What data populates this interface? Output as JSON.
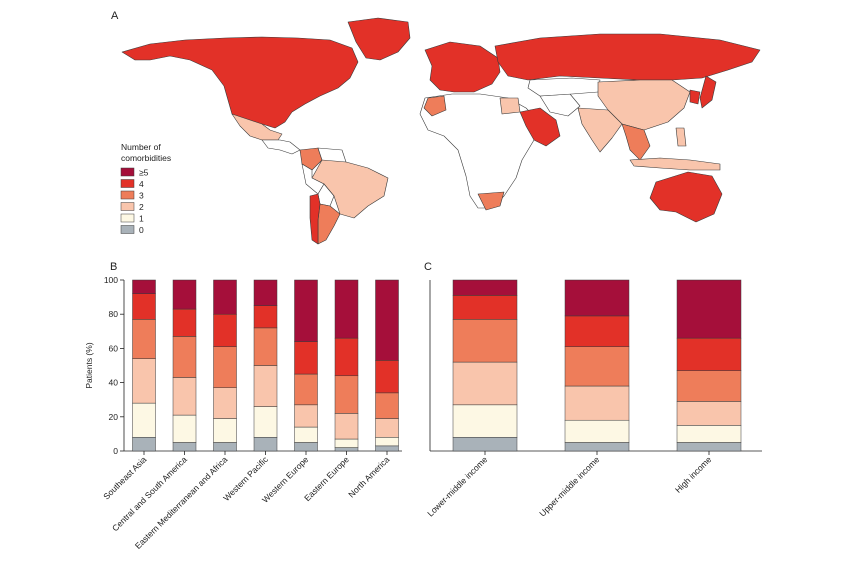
{
  "panels": {
    "a": "A",
    "b": "B",
    "c": "C"
  },
  "colors": {
    "c5": "#a50f3a",
    "c4": "#e23128",
    "c3": "#ee7d5a",
    "c2": "#f9c5ac",
    "c1": "#fdf8e4",
    "c0": "#a9b2b9",
    "none": "#ffffff",
    "border": "#3a3a3a"
  },
  "map": {
    "legend": {
      "title_line1": "Number of",
      "title_line2": "comorbidities",
      "items": [
        {
          "label": "≥5",
          "color": "#a50f3a"
        },
        {
          "label": "4",
          "color": "#e23128"
        },
        {
          "label": "3",
          "color": "#ee7d5a"
        },
        {
          "label": "2",
          "color": "#f9c5ac"
        },
        {
          "label": "1",
          "color": "#fdf8e4"
        },
        {
          "label": "0",
          "color": "#a9b2b9"
        }
      ]
    },
    "regions": [
      {
        "name": "North America",
        "color": "#e23128"
      },
      {
        "name": "Greenland",
        "color": "#e23128"
      },
      {
        "name": "Mexico",
        "color": "#f9c5ac"
      },
      {
        "name": "Central America",
        "color": "#ffffff"
      },
      {
        "name": "Colombia",
        "color": "#ee7d5a"
      },
      {
        "name": "Venezuela",
        "color": "#ffffff"
      },
      {
        "name": "Brazil",
        "color": "#f9c5ac"
      },
      {
        "name": "Peru",
        "color": "#ffffff"
      },
      {
        "name": "Bolivia",
        "color": "#ffffff"
      },
      {
        "name": "Chile",
        "color": "#e23128"
      },
      {
        "name": "Argentina",
        "color": "#ee7d5a"
      },
      {
        "name": "Europe",
        "color": "#e23128"
      },
      {
        "name": "Russia",
        "color": "#e23128"
      },
      {
        "name": "Africa",
        "color": "#ffffff"
      },
      {
        "name": "Morocco",
        "color": "#ee7d5a"
      },
      {
        "name": "Egypt",
        "color": "#f9c5ac"
      },
      {
        "name": "South Africa",
        "color": "#ee7d5a"
      },
      {
        "name": "Arabian Peninsula",
        "color": "#e23128"
      },
      {
        "name": "Iran",
        "color": "#ffffff"
      },
      {
        "name": "Kazakhstan",
        "color": "#ffffff"
      },
      {
        "name": "China",
        "color": "#f9c5ac"
      },
      {
        "name": "India",
        "color": "#f9c5ac"
      },
      {
        "name": "Japan",
        "color": "#e23128"
      },
      {
        "name": "Korea",
        "color": "#e23128"
      },
      {
        "name": "Southeast Asia",
        "color": "#ee7d5a"
      },
      {
        "name": "Philippines",
        "color": "#f9c5ac"
      },
      {
        "name": "Indonesia",
        "color": "#f9c5ac"
      },
      {
        "name": "Australia",
        "color": "#e23128"
      }
    ]
  },
  "chart_data": [
    {
      "type": "bar",
      "stacked": true,
      "panel": "B",
      "ylabel": "Patients (%)",
      "ylim": [
        0,
        100
      ],
      "yticks": [
        0,
        20,
        40,
        60,
        80,
        100
      ],
      "categories": [
        "Southeast Asia",
        "Central and South America",
        "Eastern Mediterranean and Africa",
        "Western Pacific",
        "Western Europe",
        "Eastern Europe",
        "North America"
      ],
      "series": [
        {
          "name": "0",
          "values": [
            8,
            5,
            5,
            8,
            5,
            2,
            3
          ]
        },
        {
          "name": "1",
          "values": [
            20,
            16,
            14,
            18,
            9,
            5,
            5
          ]
        },
        {
          "name": "2",
          "values": [
            26,
            22,
            18,
            24,
            13,
            15,
            11
          ]
        },
        {
          "name": "3",
          "values": [
            23,
            24,
            24,
            22,
            18,
            22,
            15
          ]
        },
        {
          "name": "4",
          "values": [
            15,
            16,
            19,
            13,
            19,
            22,
            19
          ]
        },
        {
          "name": "≥5",
          "values": [
            8,
            17,
            20,
            15,
            36,
            34,
            47
          ]
        }
      ]
    },
    {
      "type": "bar",
      "stacked": true,
      "panel": "C",
      "ylim": [
        0,
        100
      ],
      "categories": [
        "Lower-middle income",
        "Upper-middle income",
        "High income"
      ],
      "series": [
        {
          "name": "0",
          "values": [
            8,
            5,
            5
          ]
        },
        {
          "name": "1",
          "values": [
            19,
            13,
            10
          ]
        },
        {
          "name": "2",
          "values": [
            25,
            20,
            14
          ]
        },
        {
          "name": "3",
          "values": [
            25,
            23,
            18
          ]
        },
        {
          "name": "4",
          "values": [
            14,
            18,
            19
          ]
        },
        {
          "name": "≥5",
          "values": [
            9,
            21,
            34
          ]
        }
      ]
    }
  ]
}
